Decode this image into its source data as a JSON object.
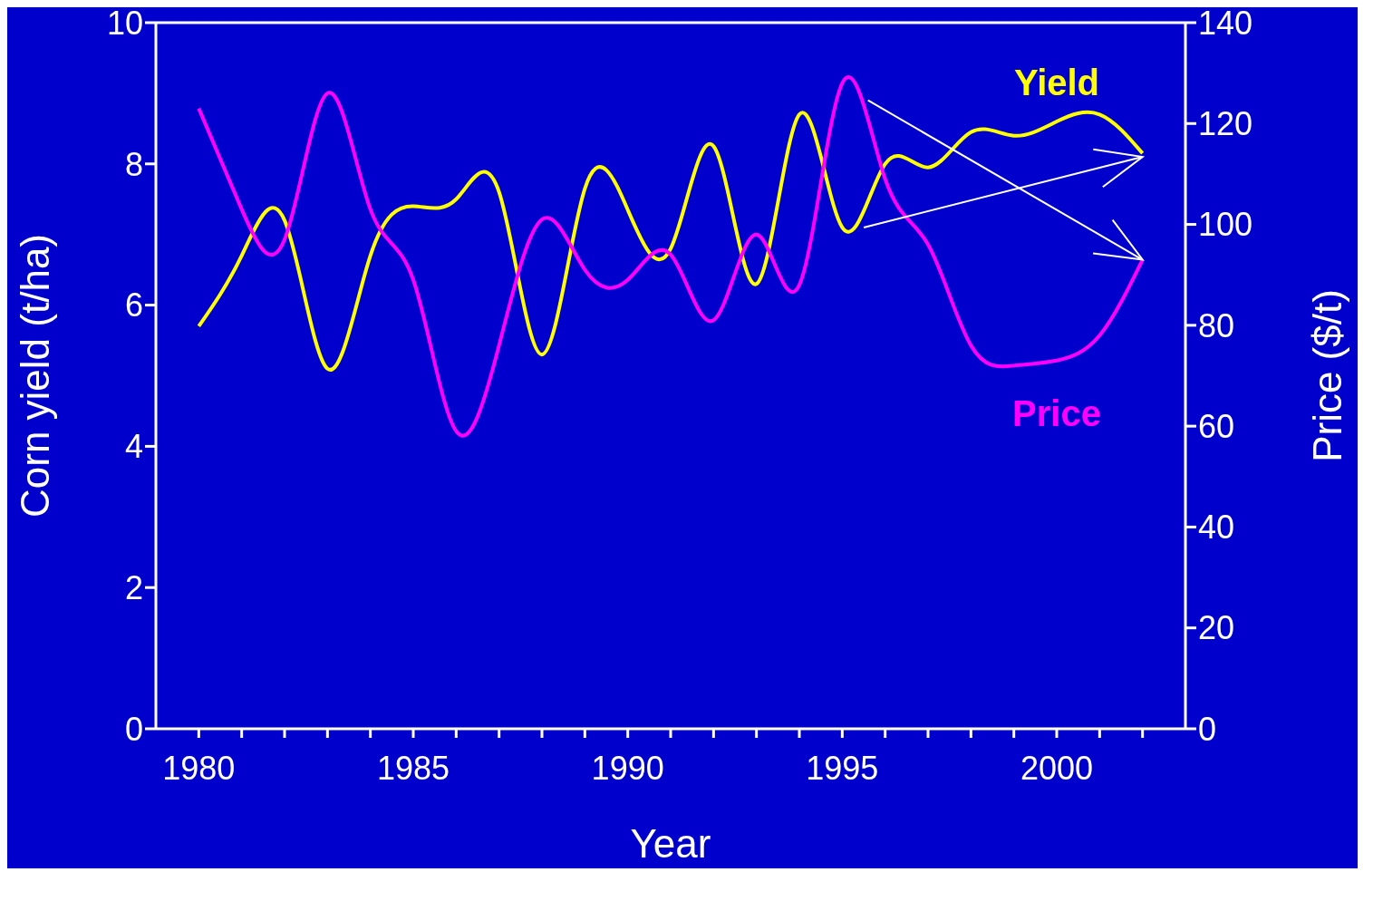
{
  "chart_data": {
    "type": "line",
    "xlabel": "Year",
    "ylabel": "Corn yield (t/ha)",
    "y2label": "Price ($/t)",
    "x": [
      1980,
      1981,
      1982,
      1983,
      1984,
      1985,
      1986,
      1987,
      1988,
      1989,
      1990,
      1991,
      1992,
      1993,
      1994,
      1995,
      1996,
      1997,
      1998,
      1999,
      2000,
      2001,
      2002
    ],
    "series": [
      {
        "name": "Yield",
        "color": "#ffff00",
        "values": [
          5.7,
          6.7,
          7.2,
          5.1,
          6.7,
          7.4,
          7.5,
          7.6,
          5.3,
          7.65,
          7.35,
          6.8,
          8.25,
          6.3,
          8.7,
          7.1,
          8.0,
          7.95,
          8.45,
          8.4,
          8.6,
          8.7,
          8.15
        ]
      },
      {
        "name": "Price",
        "color": "#ff00ff",
        "axis": "y2",
        "values": [
          123,
          103,
          97,
          126,
          103,
          89,
          59,
          76,
          101,
          91,
          89,
          94,
          81,
          98,
          88,
          128,
          109,
          96,
          76,
          72,
          73,
          78,
          93
        ]
      }
    ],
    "xlim": [
      1979,
      2003
    ],
    "xticks": [
      1980,
      {
        "value": 1981,
        "label": null
      },
      {
        "value": 1982,
        "label": null
      },
      {
        "value": 1983,
        "label": null
      },
      {
        "value": 1984,
        "label": null
      },
      1985,
      {
        "value": 1986,
        "label": null
      },
      {
        "value": 1987,
        "label": null
      },
      {
        "value": 1988,
        "label": null
      },
      {
        "value": 1989,
        "label": null
      },
      1990,
      {
        "value": 1991,
        "label": null
      },
      {
        "value": 1992,
        "label": null
      },
      {
        "value": 1993,
        "label": null
      },
      {
        "value": 1994,
        "label": null
      },
      1995,
      {
        "value": 1996,
        "label": null
      },
      {
        "value": 1997,
        "label": null
      },
      {
        "value": 1998,
        "label": null
      },
      {
        "value": 1999,
        "label": null
      },
      2000,
      {
        "value": 2001,
        "label": null
      },
      {
        "value": 2002,
        "label": null
      }
    ],
    "ylim": [
      0,
      10
    ],
    "yticks": [
      0,
      2,
      4,
      6,
      8,
      10
    ],
    "y2lim": [
      0,
      140
    ],
    "y2ticks": [
      0,
      20,
      40,
      60,
      80,
      100,
      120,
      140
    ],
    "grid": false,
    "legend": false,
    "marker": "none",
    "line_style": "solid"
  }
}
